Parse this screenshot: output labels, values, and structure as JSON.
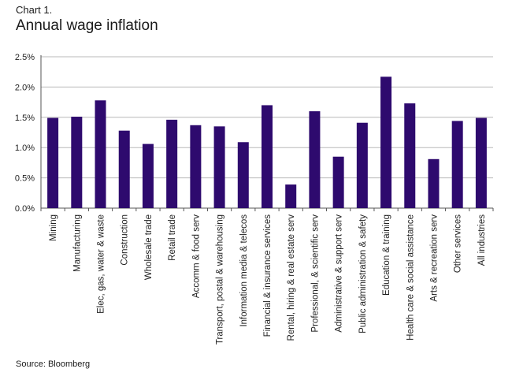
{
  "header": {
    "label": "Chart 1.",
    "title": "Annual wage inflation"
  },
  "source": "Source: Bloomberg",
  "colors": {
    "bar": "#2e0a6e",
    "grid": "#b8b8b8",
    "axis": "#555555"
  },
  "chart_data": {
    "type": "bar",
    "categories": [
      "Mining",
      "Manufacturing",
      "Elec, gas, water & waste",
      "Construction",
      "Wholesale trade",
      "Retail trade",
      "Accomm & food serv",
      "Transport, postal & warehousing",
      "Information media & telecos",
      "Financial & insurance services",
      "Rental, hiring & real estate serv",
      "Professional, & scientific serv",
      "Administrative & support serv",
      "Public administration & safety",
      "Education & training",
      "Health care & social assistance",
      "Arts & recreation serv",
      "Other services",
      "All industries"
    ],
    "values": [
      1.49,
      1.51,
      1.78,
      1.28,
      1.06,
      1.46,
      1.37,
      1.35,
      1.09,
      1.7,
      0.39,
      1.6,
      0.85,
      1.41,
      2.17,
      1.73,
      0.81,
      1.44,
      1.49
    ],
    "y_ticks": [
      "0.0%",
      "0.5%",
      "1.0%",
      "1.5%",
      "2.0%",
      "2.5%"
    ],
    "ylim": [
      0,
      2.5
    ],
    "grid": true,
    "legend": "none"
  }
}
